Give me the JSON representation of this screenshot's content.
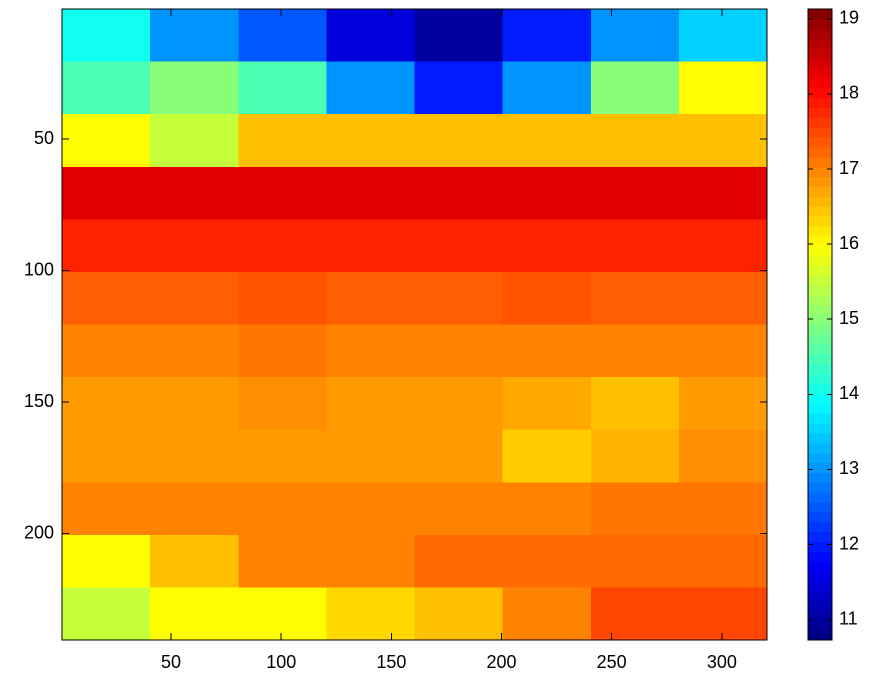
{
  "chart_data": {
    "type": "heatmap",
    "colormap": "jet",
    "xbins": [
      0.5,
      40.5,
      80.5,
      120.5,
      160.5,
      200.5,
      240.5,
      280.5,
      320.5
    ],
    "ybins": [
      0.5,
      20.5,
      40.5,
      60.5,
      80.5,
      100.5,
      120.5,
      140.5,
      160.5,
      180.5,
      200.5,
      220.5,
      240.5
    ],
    "values": [
      [
        14,
        13,
        12.5,
        11.5,
        11,
        12,
        13,
        13.5
      ],
      [
        14.5,
        15,
        14.5,
        13,
        12,
        13,
        15,
        16
      ],
      [
        16,
        15.5,
        16.5,
        16.5,
        16.5,
        16.5,
        16.5,
        16.5
      ],
      [
        18.3,
        18.3,
        18.3,
        18.3,
        18.3,
        18.3,
        18.3,
        18.3
      ],
      [
        17.8,
        17.8,
        17.8,
        17.8,
        17.8,
        17.8,
        17.8,
        17.8
      ],
      [
        17.3,
        17.3,
        17.4,
        17.3,
        17.3,
        17.4,
        17.3,
        17.3
      ],
      [
        17,
        17,
        17.1,
        17,
        17,
        17,
        17,
        17
      ],
      [
        16.8,
        16.8,
        16.9,
        16.8,
        16.8,
        16.7,
        16.5,
        16.8
      ],
      [
        16.8,
        16.8,
        16.8,
        16.8,
        16.8,
        16.4,
        16.6,
        16.9
      ],
      [
        17,
        17,
        17,
        17,
        17,
        17,
        17.1,
        17.1
      ],
      [
        16,
        16.5,
        17,
        17,
        17.2,
        17.2,
        17.2,
        17.2
      ],
      [
        15.5,
        16,
        16,
        16.3,
        16.5,
        17,
        17.5,
        17.5
      ]
    ],
    "xlim": [
      0.5,
      320.5
    ],
    "ylim": [
      240.5,
      0.5
    ],
    "xticks": [
      50,
      100,
      150,
      200,
      250,
      300
    ],
    "yticks": [
      50,
      100,
      150,
      200
    ],
    "clim": [
      10.73,
      19.13
    ],
    "cticks": [
      11,
      12,
      13,
      14,
      15,
      16,
      17,
      18,
      19
    ]
  }
}
